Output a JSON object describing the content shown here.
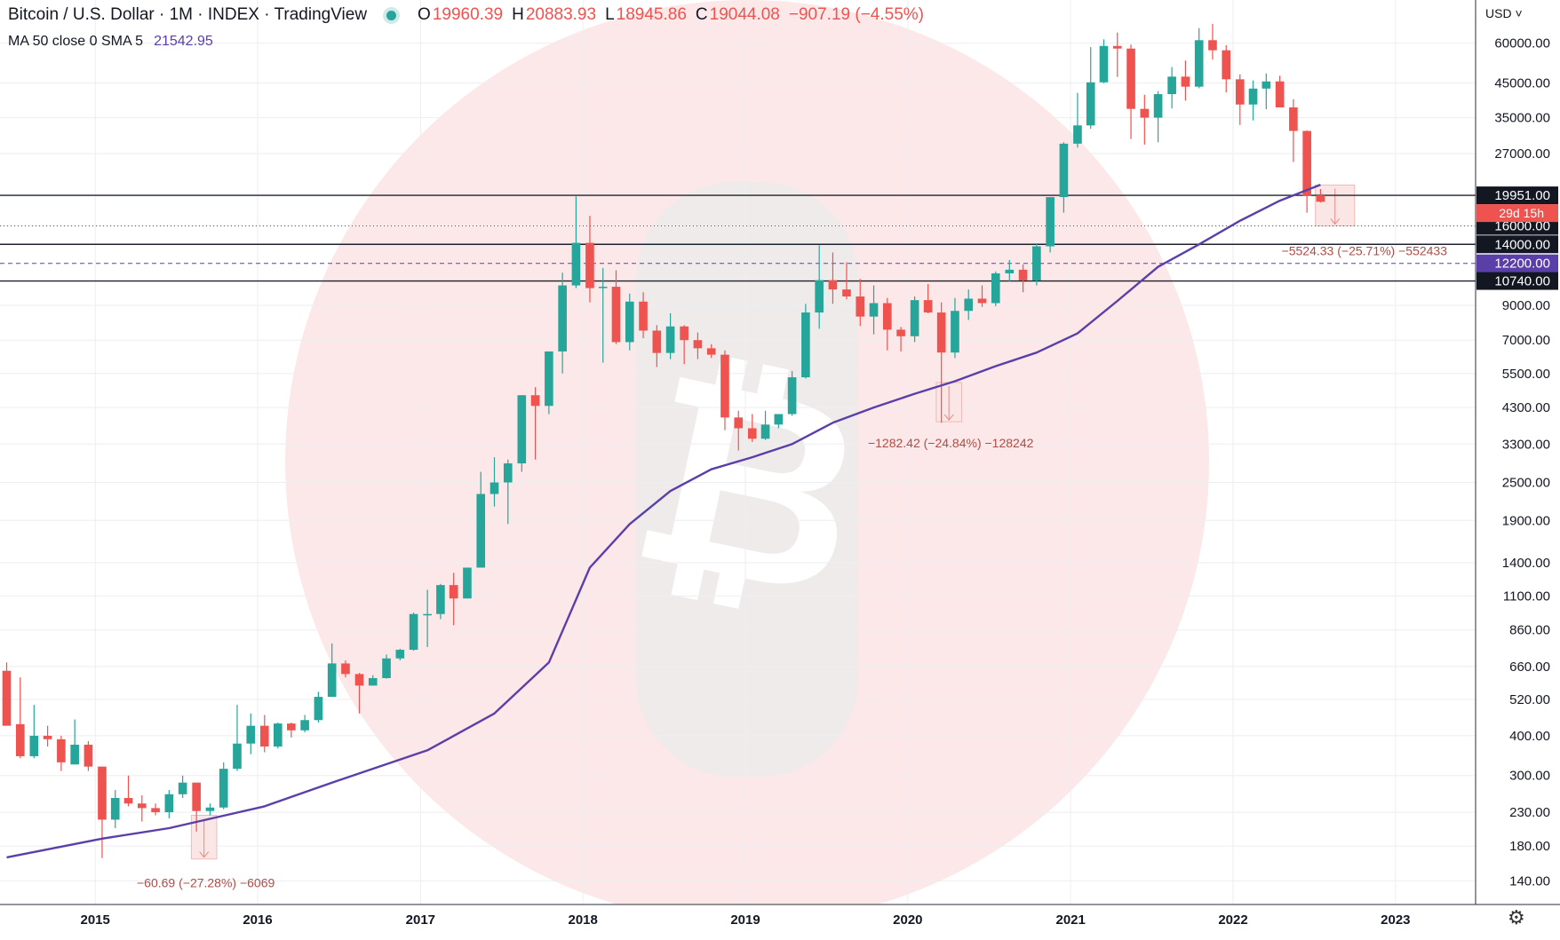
{
  "header": {
    "symbol": "Bitcoin / U.S. Dollar · 1M · INDEX · TradingView",
    "o_label": "O",
    "o_value": "19960.39",
    "h_label": "H",
    "h_value": "20883.93",
    "l_label": "L",
    "l_value": "18945.86",
    "c_label": "C",
    "c_value": "19044.08",
    "change": "−907.19 (−4.55%)",
    "status_color": "#26a69a"
  },
  "indicator": {
    "label": "MA 50 close 0 SMA 5",
    "value": "21542.95",
    "color": "#5b3fa8"
  },
  "price_axis": {
    "currency": "USD"
  },
  "chart_data": {
    "type": "candlestick",
    "title": "",
    "y_scale": "log",
    "ylim": [
      118,
      82000
    ],
    "xlim": [
      "2014-06-01",
      "2023-06-30"
    ],
    "grid": true,
    "y_ticks": [
      "60000.00",
      "45000.00",
      "35000.00",
      "27000.00",
      "16000.00",
      "9000.00",
      "7000.00",
      "5500.00",
      "4300.00",
      "3300.00",
      "2500.00",
      "1900.00",
      "1400.00",
      "1100.00",
      "860.00",
      "660.00",
      "520.00",
      "400.00",
      "300.00",
      "230.00",
      "180.00",
      "140.00"
    ],
    "x_ticks": [
      {
        "label": "2015",
        "date": "2015-01-01"
      },
      {
        "label": "2016",
        "date": "2016-01-01"
      },
      {
        "label": "2017",
        "date": "2017-01-01"
      },
      {
        "label": "2018",
        "date": "2018-01-01"
      },
      {
        "label": "2019",
        "date": "2019-01-01"
      },
      {
        "label": "2020",
        "date": "2020-01-01"
      },
      {
        "label": "2021",
        "date": "2021-01-01"
      },
      {
        "label": "2022",
        "date": "2022-01-01"
      },
      {
        "label": "2023",
        "date": "2023-01-01"
      }
    ],
    "candles": [
      {
        "date": "2014-06",
        "o": 640,
        "h": 680,
        "l": 560,
        "c": 430
      },
      {
        "date": "2014-07",
        "o": 435,
        "h": 610,
        "l": 340,
        "c": 345
      },
      {
        "date": "2014-08",
        "o": 345,
        "h": 500,
        "l": 340,
        "c": 400
      },
      {
        "date": "2014-09",
        "o": 400,
        "h": 430,
        "l": 370,
        "c": 390
      },
      {
        "date": "2014-10",
        "o": 390,
        "h": 400,
        "l": 310,
        "c": 330
      },
      {
        "date": "2014-11",
        "o": 325,
        "h": 450,
        "l": 325,
        "c": 375
      },
      {
        "date": "2014-12",
        "o": 375,
        "h": 385,
        "l": 310,
        "c": 320
      },
      {
        "date": "2015-01",
        "o": 320,
        "h": 320,
        "l": 165,
        "c": 218
      },
      {
        "date": "2015-02",
        "o": 218,
        "h": 270,
        "l": 205,
        "c": 255
      },
      {
        "date": "2015-03",
        "o": 255,
        "h": 300,
        "l": 240,
        "c": 245
      },
      {
        "date": "2015-04",
        "o": 245,
        "h": 260,
        "l": 215,
        "c": 237
      },
      {
        "date": "2015-05",
        "o": 237,
        "h": 245,
        "l": 225,
        "c": 230
      },
      {
        "date": "2015-06",
        "o": 230,
        "h": 270,
        "l": 220,
        "c": 262
      },
      {
        "date": "2015-07",
        "o": 262,
        "h": 300,
        "l": 255,
        "c": 285
      },
      {
        "date": "2015-08",
        "o": 285,
        "h": 285,
        "l": 200,
        "c": 232
      },
      {
        "date": "2015-09",
        "o": 232,
        "h": 245,
        "l": 225,
        "c": 238
      },
      {
        "date": "2015-10",
        "o": 238,
        "h": 330,
        "l": 235,
        "c": 315
      },
      {
        "date": "2015-11",
        "o": 315,
        "h": 500,
        "l": 310,
        "c": 378
      },
      {
        "date": "2015-12",
        "o": 378,
        "h": 470,
        "l": 350,
        "c": 430
      },
      {
        "date": "2016-01",
        "o": 430,
        "h": 465,
        "l": 355,
        "c": 370
      },
      {
        "date": "2016-02",
        "o": 370,
        "h": 440,
        "l": 365,
        "c": 437
      },
      {
        "date": "2016-03",
        "o": 437,
        "h": 440,
        "l": 395,
        "c": 416
      },
      {
        "date": "2016-04",
        "o": 416,
        "h": 465,
        "l": 410,
        "c": 448
      },
      {
        "date": "2016-05",
        "o": 448,
        "h": 550,
        "l": 440,
        "c": 530
      },
      {
        "date": "2016-06",
        "o": 530,
        "h": 780,
        "l": 530,
        "c": 675
      },
      {
        "date": "2016-07",
        "o": 675,
        "h": 690,
        "l": 610,
        "c": 625
      },
      {
        "date": "2016-08",
        "o": 625,
        "h": 630,
        "l": 470,
        "c": 575
      },
      {
        "date": "2016-09",
        "o": 575,
        "h": 620,
        "l": 575,
        "c": 607
      },
      {
        "date": "2016-10",
        "o": 607,
        "h": 720,
        "l": 605,
        "c": 700
      },
      {
        "date": "2016-11",
        "o": 700,
        "h": 750,
        "l": 690,
        "c": 745
      },
      {
        "date": "2016-12",
        "o": 745,
        "h": 975,
        "l": 740,
        "c": 965
      },
      {
        "date": "2017-01",
        "o": 965,
        "h": 1150,
        "l": 760,
        "c": 965
      },
      {
        "date": "2017-02",
        "o": 965,
        "h": 1200,
        "l": 930,
        "c": 1190
      },
      {
        "date": "2017-03",
        "o": 1190,
        "h": 1300,
        "l": 890,
        "c": 1080
      },
      {
        "date": "2017-04",
        "o": 1080,
        "h": 1350,
        "l": 1080,
        "c": 1350
      },
      {
        "date": "2017-05",
        "o": 1350,
        "h": 2700,
        "l": 1350,
        "c": 2300
      },
      {
        "date": "2017-06",
        "o": 2300,
        "h": 3000,
        "l": 2100,
        "c": 2500
      },
      {
        "date": "2017-07",
        "o": 2500,
        "h": 2950,
        "l": 1850,
        "c": 2870
      },
      {
        "date": "2017-08",
        "o": 2870,
        "h": 4700,
        "l": 2700,
        "c": 4700
      },
      {
        "date": "2017-09",
        "o": 4700,
        "h": 4980,
        "l": 2950,
        "c": 4350
      },
      {
        "date": "2017-10",
        "o": 4350,
        "h": 6450,
        "l": 4100,
        "c": 6450
      },
      {
        "date": "2017-11",
        "o": 6450,
        "h": 11400,
        "l": 5500,
        "c": 10400
      },
      {
        "date": "2017-12",
        "o": 10400,
        "h": 19800,
        "l": 10200,
        "c": 14150
      },
      {
        "date": "2018-01",
        "o": 14150,
        "h": 17200,
        "l": 9200,
        "c": 10200
      },
      {
        "date": "2018-02",
        "o": 10200,
        "h": 11800,
        "l": 5950,
        "c": 10300
      },
      {
        "date": "2018-03",
        "o": 10300,
        "h": 11600,
        "l": 6800,
        "c": 6900
      },
      {
        "date": "2018-04",
        "o": 6900,
        "h": 9800,
        "l": 6500,
        "c": 9250
      },
      {
        "date": "2018-05",
        "o": 9250,
        "h": 9900,
        "l": 7100,
        "c": 7500
      },
      {
        "date": "2018-06",
        "o": 7500,
        "h": 7800,
        "l": 5760,
        "c": 6380
      },
      {
        "date": "2018-07",
        "o": 6380,
        "h": 8500,
        "l": 6100,
        "c": 7730
      },
      {
        "date": "2018-08",
        "o": 7730,
        "h": 7800,
        "l": 5880,
        "c": 7000
      },
      {
        "date": "2018-09",
        "o": 7000,
        "h": 7400,
        "l": 6100,
        "c": 6600
      },
      {
        "date": "2018-10",
        "o": 6600,
        "h": 6800,
        "l": 6150,
        "c": 6300
      },
      {
        "date": "2018-11",
        "o": 6300,
        "h": 6500,
        "l": 3650,
        "c": 4000
      },
      {
        "date": "2018-12",
        "o": 4000,
        "h": 4200,
        "l": 3150,
        "c": 3700
      },
      {
        "date": "2019-01",
        "o": 3700,
        "h": 4100,
        "l": 3350,
        "c": 3430
      },
      {
        "date": "2019-02",
        "o": 3430,
        "h": 4200,
        "l": 3400,
        "c": 3800
      },
      {
        "date": "2019-03",
        "o": 3800,
        "h": 4100,
        "l": 3700,
        "c": 4100
      },
      {
        "date": "2019-04",
        "o": 4100,
        "h": 5600,
        "l": 4050,
        "c": 5350
      },
      {
        "date": "2019-05",
        "o": 5350,
        "h": 9100,
        "l": 5300,
        "c": 8550
      },
      {
        "date": "2019-06",
        "o": 8550,
        "h": 13900,
        "l": 7600,
        "c": 10800
      },
      {
        "date": "2019-07",
        "o": 10800,
        "h": 13200,
        "l": 9100,
        "c": 10100
      },
      {
        "date": "2019-08",
        "o": 10100,
        "h": 12300,
        "l": 9400,
        "c": 9600
      },
      {
        "date": "2019-09",
        "o": 9600,
        "h": 10900,
        "l": 7750,
        "c": 8300
      },
      {
        "date": "2019-10",
        "o": 8300,
        "h": 10400,
        "l": 7300,
        "c": 9150
      },
      {
        "date": "2019-11",
        "o": 9150,
        "h": 9500,
        "l": 6500,
        "c": 7550
      },
      {
        "date": "2019-12",
        "o": 7550,
        "h": 7700,
        "l": 6450,
        "c": 7200
      },
      {
        "date": "2020-01",
        "o": 7200,
        "h": 9600,
        "l": 6900,
        "c": 9350
      },
      {
        "date": "2020-02",
        "o": 9350,
        "h": 10500,
        "l": 8500,
        "c": 8550
      },
      {
        "date": "2020-03",
        "o": 8550,
        "h": 9200,
        "l": 3850,
        "c": 6400
      },
      {
        "date": "2020-04",
        "o": 6400,
        "h": 9500,
        "l": 6150,
        "c": 8650
      },
      {
        "date": "2020-05",
        "o": 8650,
        "h": 10100,
        "l": 8100,
        "c": 9450
      },
      {
        "date": "2020-06",
        "o": 9450,
        "h": 10400,
        "l": 8900,
        "c": 9150
      },
      {
        "date": "2020-07",
        "o": 9150,
        "h": 11500,
        "l": 8950,
        "c": 11350
      },
      {
        "date": "2020-08",
        "o": 11350,
        "h": 12500,
        "l": 10700,
        "c": 11650
      },
      {
        "date": "2020-09",
        "o": 11650,
        "h": 12100,
        "l": 9900,
        "c": 10780
      },
      {
        "date": "2020-10",
        "o": 10780,
        "h": 14100,
        "l": 10400,
        "c": 13800
      },
      {
        "date": "2020-11",
        "o": 13800,
        "h": 19500,
        "l": 13200,
        "c": 19700
      },
      {
        "date": "2020-12",
        "o": 19700,
        "h": 29300,
        "l": 17600,
        "c": 29000
      },
      {
        "date": "2021-01",
        "o": 29000,
        "h": 41900,
        "l": 28200,
        "c": 33100
      },
      {
        "date": "2021-02",
        "o": 33100,
        "h": 58300,
        "l": 32300,
        "c": 45200
      },
      {
        "date": "2021-03",
        "o": 45200,
        "h": 61700,
        "l": 44900,
        "c": 58800
      },
      {
        "date": "2021-04",
        "o": 58800,
        "h": 64800,
        "l": 47000,
        "c": 57700
      },
      {
        "date": "2021-05",
        "o": 57700,
        "h": 59400,
        "l": 30000,
        "c": 37300
      },
      {
        "date": "2021-06",
        "o": 37300,
        "h": 41300,
        "l": 28800,
        "c": 35000
      },
      {
        "date": "2021-07",
        "o": 35000,
        "h": 42400,
        "l": 29300,
        "c": 41500
      },
      {
        "date": "2021-08",
        "o": 41500,
        "h": 50500,
        "l": 37400,
        "c": 47100
      },
      {
        "date": "2021-09",
        "o": 47100,
        "h": 52900,
        "l": 39600,
        "c": 43800
      },
      {
        "date": "2021-10",
        "o": 43800,
        "h": 66900,
        "l": 43300,
        "c": 61300
      },
      {
        "date": "2021-11",
        "o": 61300,
        "h": 69000,
        "l": 53300,
        "c": 57000
      },
      {
        "date": "2021-12",
        "o": 57000,
        "h": 59100,
        "l": 42000,
        "c": 46200
      },
      {
        "date": "2022-01",
        "o": 46200,
        "h": 47900,
        "l": 33200,
        "c": 38500
      },
      {
        "date": "2022-02",
        "o": 38500,
        "h": 45800,
        "l": 34300,
        "c": 43200
      },
      {
        "date": "2022-03",
        "o": 43200,
        "h": 48200,
        "l": 37200,
        "c": 45500
      },
      {
        "date": "2022-04",
        "o": 45500,
        "h": 47400,
        "l": 37700,
        "c": 37700
      },
      {
        "date": "2022-05",
        "o": 37700,
        "h": 40000,
        "l": 25400,
        "c": 31800
      },
      {
        "date": "2022-06",
        "o": 31800,
        "h": 31900,
        "l": 17600,
        "c": 19900
      },
      {
        "date": "2022-07",
        "o": 19960.39,
        "h": 20883.93,
        "l": 18945.86,
        "c": 19044.08
      }
    ],
    "ma_series": {
      "name": "MA 50",
      "points": [
        {
          "date": "2014-06",
          "v": 166
        },
        {
          "date": "2015-01",
          "v": 190
        },
        {
          "date": "2015-06",
          "v": 205
        },
        {
          "date": "2016-01",
          "v": 240
        },
        {
          "date": "2016-06",
          "v": 285
        },
        {
          "date": "2017-01",
          "v": 360
        },
        {
          "date": "2017-06",
          "v": 470
        },
        {
          "date": "2017-10",
          "v": 680
        },
        {
          "date": "2018-01",
          "v": 1350
        },
        {
          "date": "2018-04",
          "v": 1850
        },
        {
          "date": "2018-07",
          "v": 2350
        },
        {
          "date": "2018-10",
          "v": 2750
        },
        {
          "date": "2019-01",
          "v": 3000
        },
        {
          "date": "2019-04",
          "v": 3300
        },
        {
          "date": "2019-07",
          "v": 3850
        },
        {
          "date": "2019-10",
          "v": 4300
        },
        {
          "date": "2020-01",
          "v": 4750
        },
        {
          "date": "2020-04",
          "v": 5200
        },
        {
          "date": "2020-07",
          "v": 5800
        },
        {
          "date": "2020-10",
          "v": 6400
        },
        {
          "date": "2021-01",
          "v": 7350
        },
        {
          "date": "2021-04",
          "v": 9300
        },
        {
          "date": "2021-07",
          "v": 11900
        },
        {
          "date": "2021-10",
          "v": 14000
        },
        {
          "date": "2022-01",
          "v": 16600
        },
        {
          "date": "2022-04",
          "v": 19200
        },
        {
          "date": "2022-07",
          "v": 21542.95
        }
      ]
    },
    "horizontal_lines": [
      {
        "price": 19951.0,
        "label": "19951.00",
        "style": "solid-black"
      },
      {
        "price": 16000.0,
        "label": "16000.00",
        "style": "dotted-black"
      },
      {
        "price": 14000.0,
        "label": "14000.00",
        "style": "solid-black"
      },
      {
        "price": 12200.0,
        "label": "12200.00",
        "style": "dashed-purple"
      },
      {
        "price": 10740.0,
        "label": "10740.00",
        "style": "solid-black"
      }
    ],
    "countdown_label": "29d 15h",
    "measurements": [
      {
        "from_date": "2015-08",
        "to_date": "2015-09",
        "high": 225,
        "low": 164,
        "label": "−60.69 (−27.28%) −6069"
      },
      {
        "from_date": "2020-03",
        "to_date": "2020-04",
        "high": 5150,
        "low": 3880,
        "label": "−1282.42 (−24.84%) −128242"
      },
      {
        "from_date": "2022-07",
        "to_date": "2022-09",
        "high": 21500,
        "low": 16000,
        "label": "−5524.33 (−25.71%) −552433"
      }
    ],
    "colors": {
      "up": "#26a69a",
      "down": "#ef5350",
      "ma": "#5b3fa8",
      "measure_fill": "#fbe6e6",
      "measure_text": "#b24b46",
      "level_label_bg": "#131722",
      "countdown_bg": "#ef5350",
      "watermark_circle": "#fce8e8",
      "watermark_icon": "#f0ebeb",
      "watermark_glyph": "#ffffff"
    },
    "watermark": "bitcoin-logo"
  },
  "icons": {
    "settings": "gear-icon",
    "status": "market-open-dot"
  }
}
